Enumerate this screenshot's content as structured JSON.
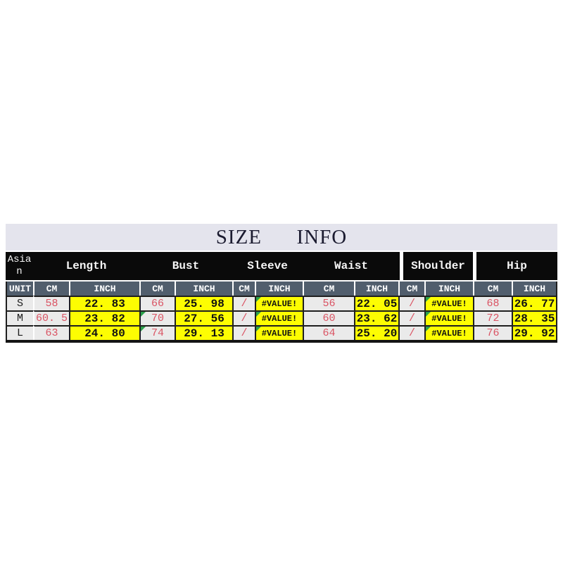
{
  "table": {
    "title": "SIZE      INFO",
    "groups": {
      "asian": "Asian",
      "length": "Length",
      "bust": "Bust",
      "sleeve": "Sleeve",
      "waist": "Waist",
      "shoulder": "Shoulder",
      "hip": "Hip"
    },
    "unit_header": {
      "unit": "UNIT",
      "cm": "CM",
      "inch": "INCH"
    },
    "rows": [
      {
        "size": "S",
        "length_cm": "58",
        "length_inch": "22. 83",
        "bust_cm": "66",
        "bust_inch": "25. 98",
        "sleeve_cm": "/",
        "sleeve_inch": "#VALUE!",
        "waist_cm": "56",
        "waist_inch": "22. 05",
        "shoulder_cm": "/",
        "shoulder_inch": "#VALUE!",
        "hip_cm": "68",
        "hip_inch": "26. 77"
      },
      {
        "size": "M",
        "length_cm": "60. 5",
        "length_inch": "23. 82",
        "bust_cm": "70",
        "bust_inch": "27. 56",
        "sleeve_cm": "/",
        "sleeve_inch": "#VALUE!",
        "waist_cm": "60",
        "waist_inch": "23. 62",
        "shoulder_cm": "/",
        "shoulder_inch": "#VALUE!",
        "hip_cm": "72",
        "hip_inch": "28. 35"
      },
      {
        "size": "L",
        "length_cm": "63",
        "length_inch": "24. 80",
        "bust_cm": "74",
        "bust_inch": "29. 13",
        "sleeve_cm": "/",
        "sleeve_inch": "#VALUE!",
        "waist_cm": "64",
        "waist_inch": "25. 20",
        "shoulder_cm": "/",
        "shoulder_inch": "#VALUE!",
        "hip_cm": "76",
        "hip_inch": "29. 92"
      }
    ],
    "colors": {
      "title_band_bg": "#e4e4ed",
      "group_header_bg": "#0a0a0a",
      "unit_row_bg": "#515e6d",
      "cell_bg": "#eaeaea",
      "highlight_yellow": "#fdfd02",
      "cm_value_red": "#da5363",
      "error_indicator_green": "#2ba04c"
    }
  }
}
